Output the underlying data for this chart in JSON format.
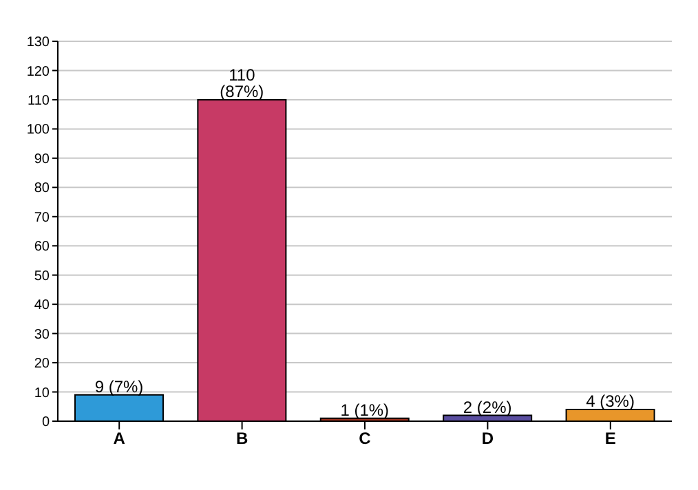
{
  "chart_data": {
    "type": "bar",
    "categories": [
      "A",
      "B",
      "C",
      "D",
      "E"
    ],
    "values": [
      9,
      110,
      1,
      2,
      4
    ],
    "colors": [
      "#2e9ad8",
      "#c73a65",
      "#a0331f",
      "#5a4ea0",
      "#e8962a"
    ],
    "value_labels": [
      "9 (7%)",
      "110 (87%)",
      "1 (1%)",
      "2 (2%)",
      "4 (3%)"
    ],
    "ylim": [
      0,
      130
    ],
    "yticks": [
      0,
      10,
      20,
      30,
      40,
      50,
      60,
      70,
      80,
      90,
      100,
      110,
      120,
      130
    ],
    "grid": "y"
  }
}
